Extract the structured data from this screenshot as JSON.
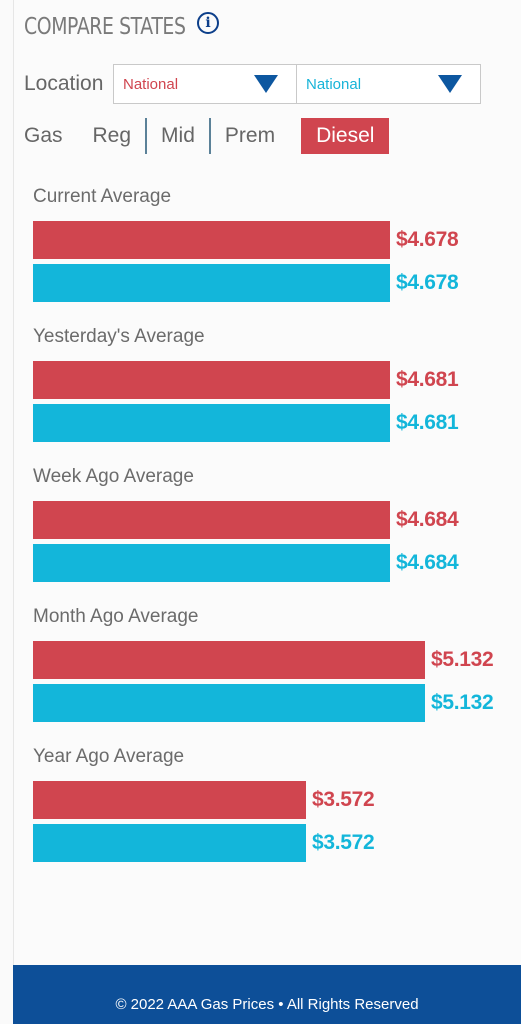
{
  "header": {
    "title": "COMPARE STATES",
    "info_icon": "info-icon"
  },
  "location": {
    "label": "Location",
    "select_1": {
      "value": "National",
      "color": "#d0454f"
    },
    "select_2": {
      "value": "National",
      "color": "#17b4d8"
    }
  },
  "gas": {
    "label": "Gas",
    "tabs": [
      {
        "label": "Reg",
        "active": false
      },
      {
        "label": "Mid",
        "active": false
      },
      {
        "label": "Prem",
        "active": false
      },
      {
        "label": "Diesel",
        "active": true
      }
    ]
  },
  "colors": {
    "location_1": "#d0454f",
    "location_2": "#13b6da",
    "brand": "#0d4f98"
  },
  "sections": [
    {
      "title": "Current Average",
      "value_1": "$4.678",
      "value_2": "$4.678",
      "price_1": 4.678,
      "price_2": 4.678
    },
    {
      "title": "Yesterday's Average",
      "value_1": "$4.681",
      "value_2": "$4.681",
      "price_1": 4.681,
      "price_2": 4.681
    },
    {
      "title": "Week Ago Average",
      "value_1": "$4.684",
      "value_2": "$4.684",
      "price_1": 4.684,
      "price_2": 4.684
    },
    {
      "title": "Month Ago Average",
      "value_1": "$5.132",
      "value_2": "$5.132",
      "price_1": 5.132,
      "price_2": 5.132
    },
    {
      "title": "Year Ago Average",
      "value_1": "$3.572",
      "value_2": "$3.572",
      "price_1": 3.572,
      "price_2": 3.572
    }
  ],
  "footer": {
    "text": "© 2022 AAA Gas Prices • All Rights Reserved"
  }
}
